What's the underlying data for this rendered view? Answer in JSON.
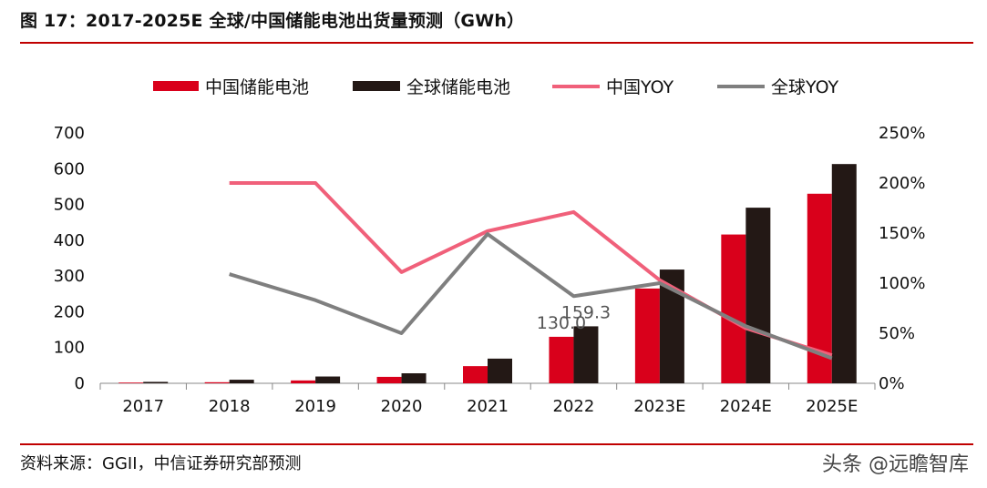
{
  "header": {
    "title": "图 17：2017-2025E 全球/中国储能电池出货量预测（GWh）"
  },
  "footer": {
    "source": "资料来源：GGII，中信证券研究部预测",
    "watermark": "头条 @远瞻智库"
  },
  "chart_data": {
    "type": "bar",
    "categories": [
      "2017",
      "2018",
      "2019",
      "2020",
      "2021",
      "2022",
      "2023E",
      "2024E",
      "2025E"
    ],
    "series": [
      {
        "name": "中国储能电池",
        "kind": "bar",
        "axis": "left",
        "color": "#d9001b",
        "values": [
          2,
          3,
          8,
          18,
          48,
          130.0,
          265,
          416,
          530
        ]
      },
      {
        "name": "全球储能电池",
        "kind": "bar",
        "axis": "left",
        "color": "#231815",
        "values": [
          4,
          10,
          19,
          28,
          69,
          159.3,
          318,
          491,
          613
        ]
      },
      {
        "name": "中国YOY",
        "kind": "line",
        "axis": "right",
        "color": "#f0607a",
        "values": [
          null,
          200,
          200,
          111,
          152,
          171,
          103,
          55,
          28
        ]
      },
      {
        "name": "全球YOY",
        "kind": "line",
        "axis": "right",
        "color": "#7f7f7f",
        "values": [
          null,
          109,
          83,
          50,
          149,
          87,
          100,
          57,
          25
        ]
      }
    ],
    "yleft": {
      "min": 0,
      "max": 700,
      "ticks": [
        0,
        100,
        200,
        300,
        400,
        500,
        600,
        700
      ]
    },
    "yright": {
      "min": 0,
      "max": 250,
      "ticks": [
        "0%",
        "50%",
        "100%",
        "150%",
        "200%",
        "250%"
      ]
    },
    "data_labels": [
      {
        "category": "2022",
        "series": "中国储能电池",
        "text": "130.0"
      },
      {
        "category": "2022",
        "series": "全球储能电池",
        "text": "159.3"
      }
    ],
    "legend_position": "top"
  }
}
